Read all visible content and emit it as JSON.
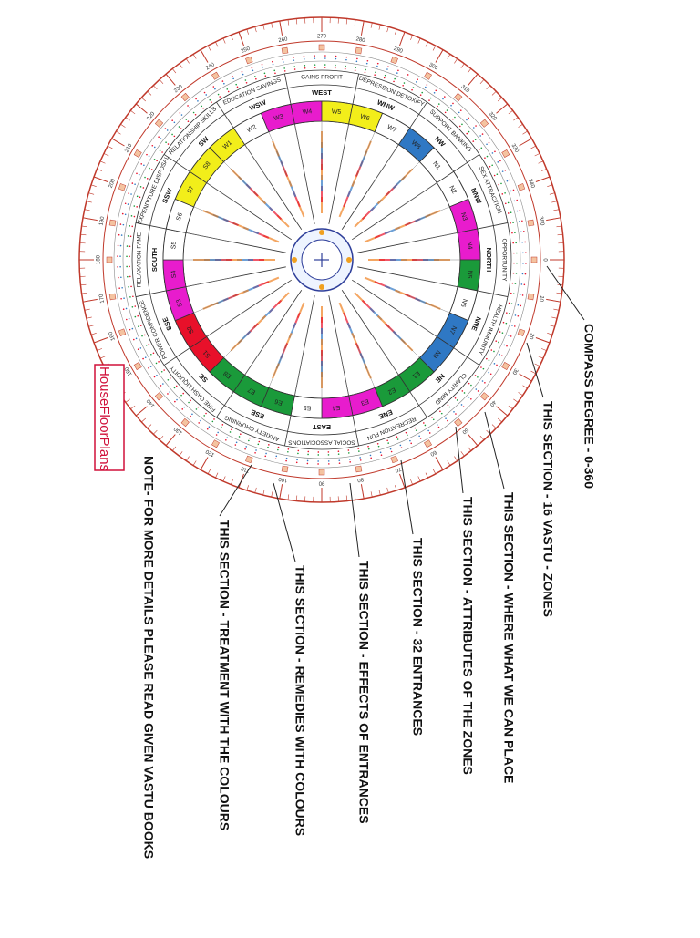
{
  "annotations": [
    "COMPASS DEGREE -   0-360",
    "THIS SECTION - 16 VASTU - ZONES",
    "THIS SECTION - WHERE WHAT WE  CAN PLACE",
    "THIS SECTION - ATTRIBUTES OF THE ZONES",
    "THIS SECTION - 32 ENTRANCES",
    "THIS SECTION -  EFFECTS OF ENTRANCES",
    "THIS SECTION - REMEDIES WITH COLOURS",
    "THIS SECTION - TREATMENT WITH THE COLOURS"
  ],
  "note": "NOTE- FOR MORE DETAILS PLEASE READ GIVEN VASTU BOOKS",
  "logo": "HouseFloorPlans",
  "compass": {
    "degrees": [
      0,
      10,
      20,
      30,
      40,
      50,
      60,
      70,
      80,
      90,
      100,
      110,
      120,
      130,
      140,
      150,
      160,
      170,
      180,
      190,
      200,
      210,
      220,
      230,
      240,
      250,
      260,
      270,
      280,
      290,
      300,
      310,
      320,
      330,
      340,
      350
    ]
  },
  "zones": [
    {
      "name": "NORTH",
      "attribute": "OPPORTUNITY"
    },
    {
      "name": "NNE",
      "attribute": "HEALTH IMMUNITY"
    },
    {
      "name": "NE",
      "attribute": "CLARITY MIND"
    },
    {
      "name": "ENE",
      "attribute": "RECREATION FUN"
    },
    {
      "name": "EAST",
      "attribute": "SOCIAL ASSOCIATIONS"
    },
    {
      "name": "ESE",
      "attribute": "ANXIETY CHURNING"
    },
    {
      "name": "SE",
      "attribute": "FIRE CASH LIQUIDITY"
    },
    {
      "name": "SSE",
      "attribute": "POWER CONFIDENCE"
    },
    {
      "name": "SOUTH",
      "attribute": "RELAXATION FAME"
    },
    {
      "name": "SSW",
      "attribute": "EXPENDITURE DISPOSAL"
    },
    {
      "name": "SW",
      "attribute": "RELATIONSHIP SKILLS"
    },
    {
      "name": "WSW",
      "attribute": "EDUCATION SAVINGS"
    },
    {
      "name": "WEST",
      "attribute": "GAINS PROFIT"
    },
    {
      "name": "WNW",
      "attribute": "DEPRESSION DETOXIFY"
    },
    {
      "name": "NW",
      "attribute": "SUPPORT BANKING"
    },
    {
      "name": "NNW",
      "attribute": "SEX ATTRACTION"
    }
  ],
  "entrances": [
    {
      "label": "N1",
      "color": "#ffffff"
    },
    {
      "label": "N2",
      "color": "#ffffff"
    },
    {
      "label": "N3",
      "color": "#e81ccd"
    },
    {
      "label": "N4",
      "color": "#e81ccd"
    },
    {
      "label": "N5",
      "color": "#1a9a3a"
    },
    {
      "label": "N6",
      "color": "#ffffff"
    },
    {
      "label": "N7",
      "color": "#2f78c4"
    },
    {
      "label": "N8",
      "color": "#2f78c4"
    },
    {
      "label": "E1",
      "color": "#1a9a3a"
    },
    {
      "label": "E2",
      "color": "#1a9a3a"
    },
    {
      "label": "E3",
      "color": "#e81ccd"
    },
    {
      "label": "E4",
      "color": "#e81ccd"
    },
    {
      "label": "E5",
      "color": "#ffffff"
    },
    {
      "label": "E6",
      "color": "#1a9a3a"
    },
    {
      "label": "E7",
      "color": "#1a9a3a"
    },
    {
      "label": "E8",
      "color": "#1a9a3a"
    },
    {
      "label": "S1",
      "color": "#e8102a"
    },
    {
      "label": "S2",
      "color": "#e8102a"
    },
    {
      "label": "S3",
      "color": "#e81ccd"
    },
    {
      "label": "S4",
      "color": "#e81ccd"
    },
    {
      "label": "S5",
      "color": "#ffffff"
    },
    {
      "label": "S6",
      "color": "#ffffff"
    },
    {
      "label": "S7",
      "color": "#f2ee1a"
    },
    {
      "label": "S8",
      "color": "#f2ee1a"
    },
    {
      "label": "W1",
      "color": "#f2ee1a"
    },
    {
      "label": "W2",
      "color": "#ffffff"
    },
    {
      "label": "W3",
      "color": "#e81ccd"
    },
    {
      "label": "W4",
      "color": "#e81ccd"
    },
    {
      "label": "W5",
      "color": "#f2ee1a"
    },
    {
      "label": "W6",
      "color": "#f2ee1a"
    },
    {
      "label": "W7",
      "color": "#ffffff"
    },
    {
      "label": "W8",
      "color": "#2f78c4"
    }
  ]
}
